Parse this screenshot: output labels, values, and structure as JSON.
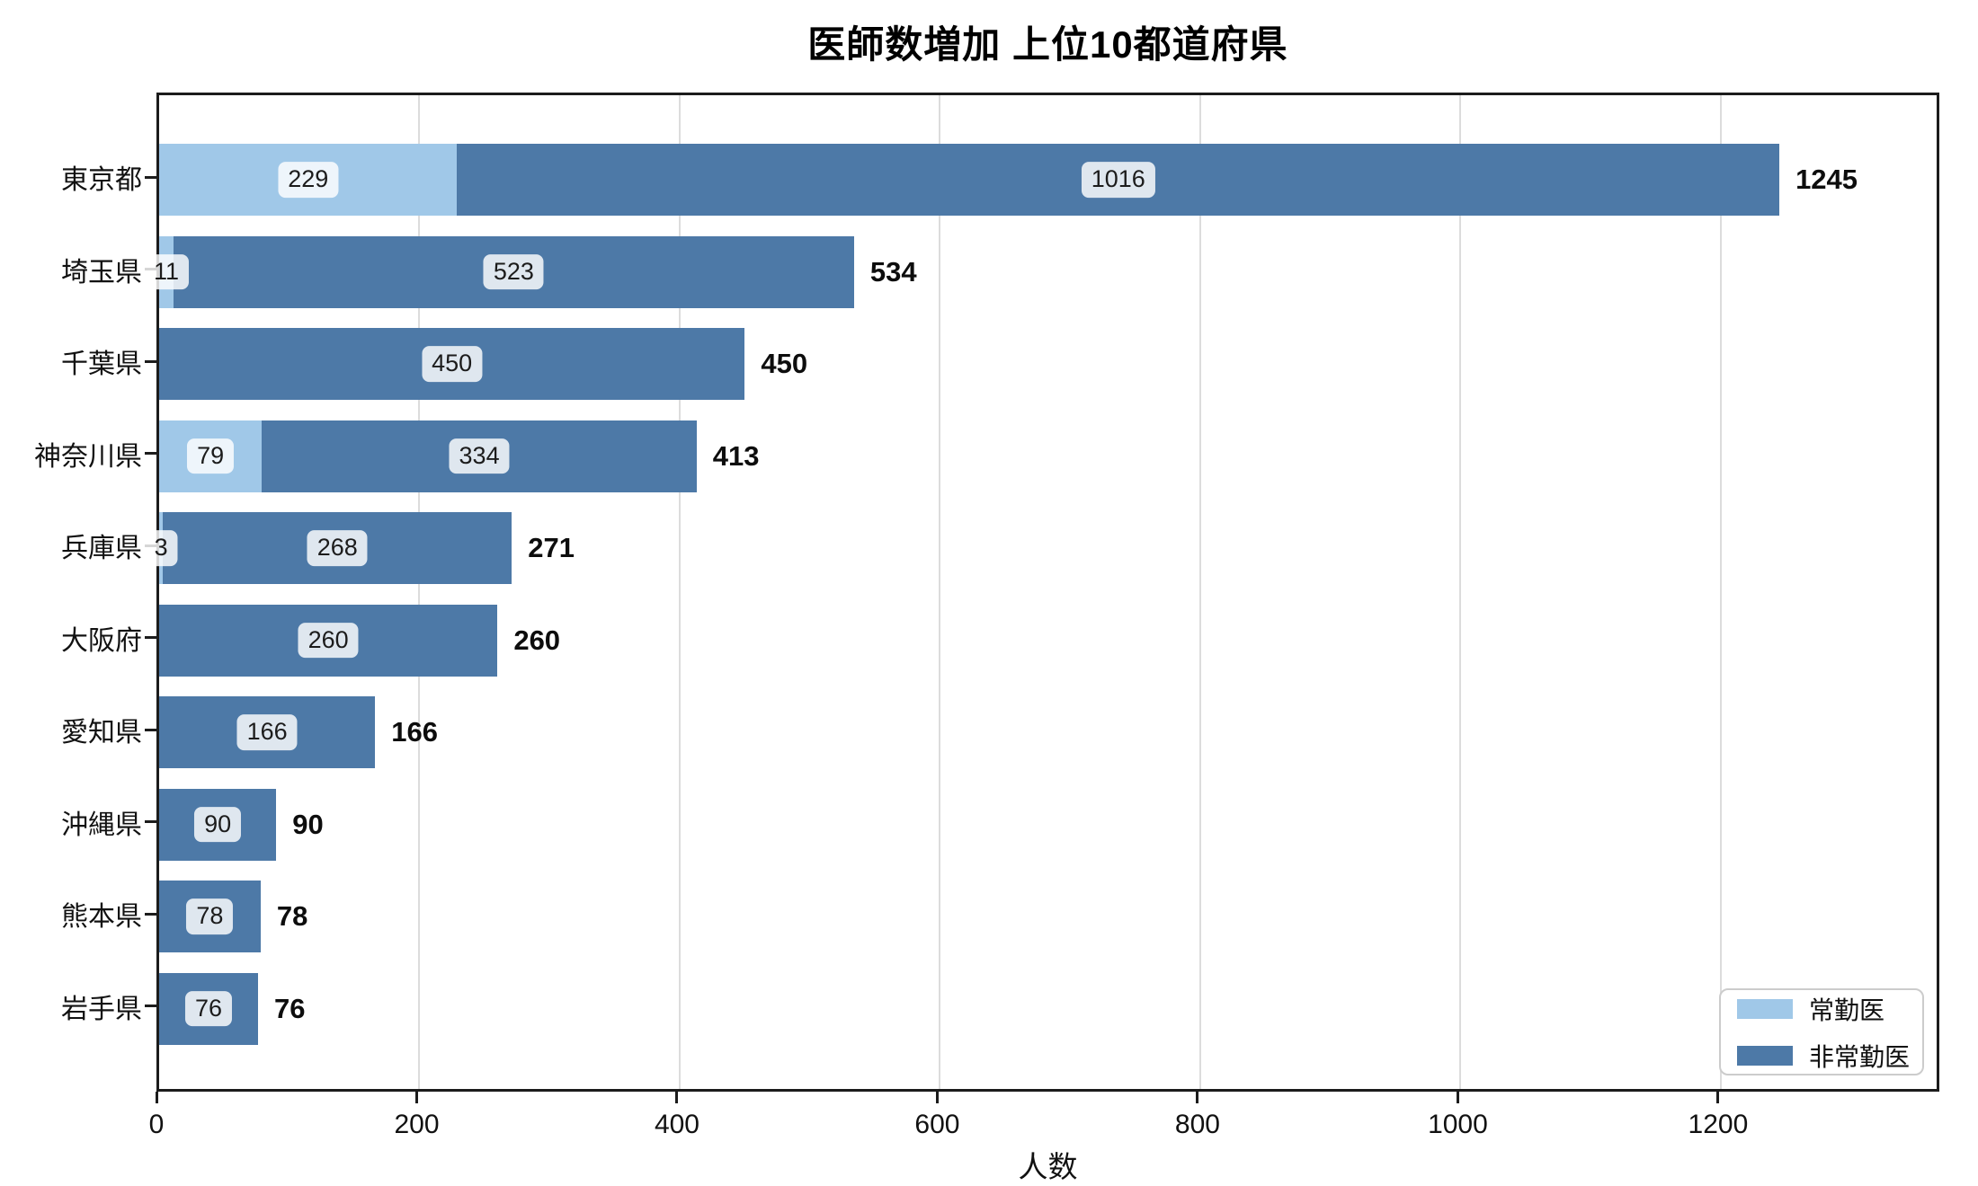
{
  "chart_data": {
    "type": "stacked_barh",
    "title": "医師数増加 上位10都道府県",
    "xlabel": "人数",
    "categories": [
      "東京都",
      "埼玉県",
      "千葉県",
      "神奈川県",
      "兵庫県",
      "大阪府",
      "愛知県",
      "沖縄県",
      "熊本県",
      "岩手県"
    ],
    "series": [
      {
        "name": "常勤医",
        "color": "#a0c8e8",
        "values": [
          229,
          11,
          0,
          79,
          3,
          0,
          0,
          0,
          0,
          0
        ]
      },
      {
        "name": "非常勤医",
        "color": "#4d79a7",
        "values": [
          1016,
          523,
          450,
          334,
          268,
          260,
          166,
          90,
          78,
          76
        ]
      }
    ],
    "totals": [
      1245,
      534,
      450,
      413,
      271,
      260,
      166,
      90,
      78,
      76
    ],
    "xticks": [
      0,
      200,
      400,
      600,
      800,
      1000,
      1200
    ],
    "xlim": [
      0,
      1370
    ],
    "grid": true,
    "legend_position": "lower right",
    "colors": {
      "spine": "#1c1c1c",
      "grid": "#dcdcdc",
      "label_pill_bg": "#f2f6fc",
      "text": "#111111"
    }
  }
}
